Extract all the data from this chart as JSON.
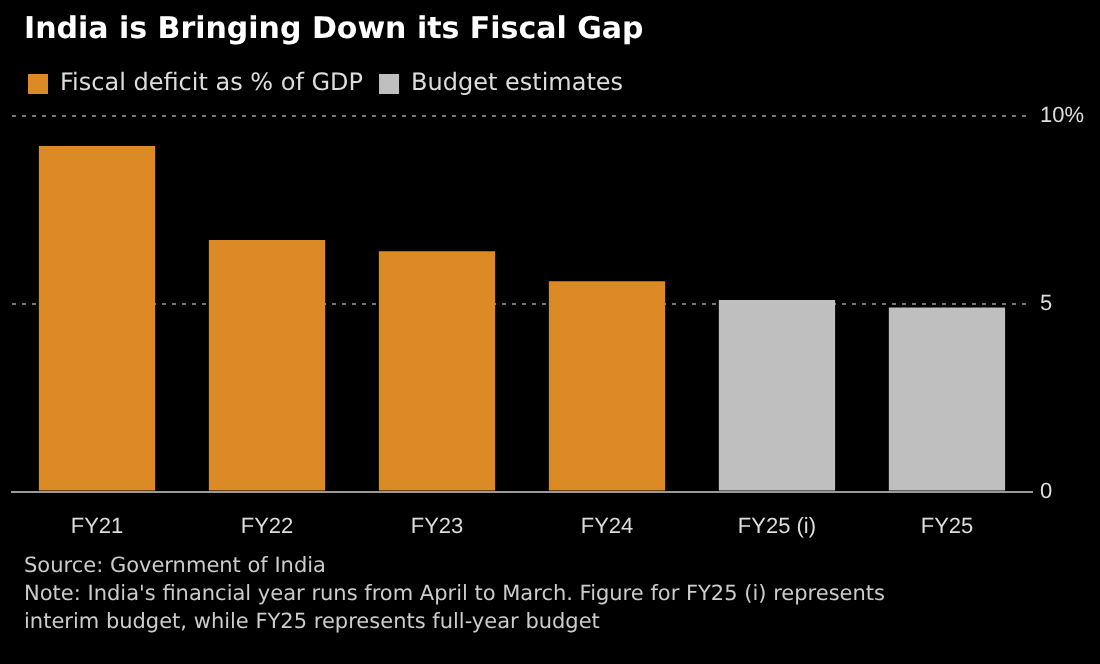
{
  "chart_data": {
    "type": "bar",
    "title": "India is Bringing Down its Fiscal Gap",
    "categories": [
      "FY21",
      "FY22",
      "FY23",
      "FY24",
      "FY25 (i)",
      "FY25"
    ],
    "series": [
      {
        "name": "Fiscal deficit as % of GDP",
        "color": "#dc8a26",
        "values": [
          9.2,
          6.7,
          6.4,
          5.6,
          null,
          null
        ]
      },
      {
        "name": "Budget estimates",
        "color": "#bfbfbf",
        "values": [
          null,
          null,
          null,
          null,
          5.1,
          4.9
        ]
      }
    ],
    "ylim": [
      0,
      10
    ],
    "yticks": [
      0,
      5,
      {
        "value": 10,
        "label": "10%"
      }
    ],
    "grid": "y",
    "legend": "top left",
    "annotations": [
      "Source: Government of India",
      "Note: India's financial year runs from April to March. Figure for FY25 (i) represents interim budget, while FY25 represents full-year budget"
    ]
  }
}
